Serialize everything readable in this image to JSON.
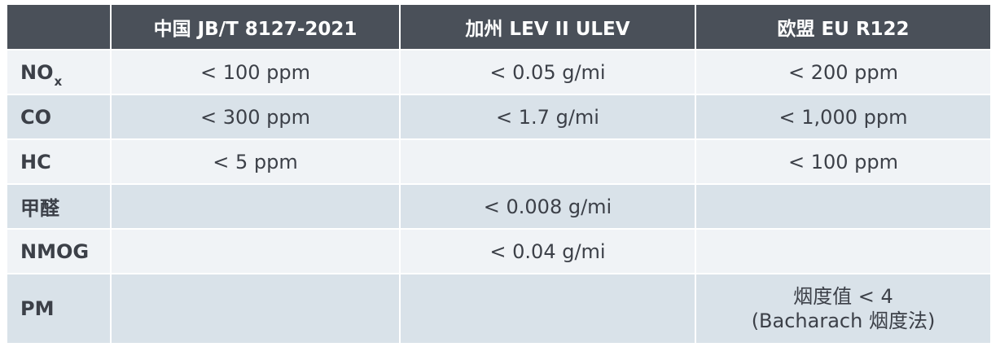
{
  "header": [
    "",
    "中国 JB/T 8127-2021",
    "加州 LEV II ULEV",
    "欧盟 EU R122"
  ],
  "rows": [
    {
      "label": "NO",
      "label_sub": "x",
      "values": [
        "< 100 ppm",
        "< 0.05 g/mi",
        "< 200 ppm"
      ]
    },
    {
      "label": "CO",
      "values": [
        "< 300 ppm",
        "< 1.7 g/mi",
        "< 1,000 ppm"
      ]
    },
    {
      "label": "HC",
      "values": [
        "< 5 ppm",
        "",
        "< 100 ppm"
      ]
    },
    {
      "label": "甲醛",
      "values": [
        "",
        "< 0.008 g/mi",
        ""
      ]
    },
    {
      "label": "NMOG",
      "values": [
        "",
        "< 0.04 g/mi",
        ""
      ]
    },
    {
      "label": "PM",
      "values": [
        "",
        "",
        ""
      ],
      "pm_line1": "烟度值 < 4",
      "pm_line2": "(Bacharach 烟度法)"
    }
  ],
  "colors": {
    "header_bg": "#4a5059",
    "row_light": "#f0f3f6",
    "row_dark": "#d9e2e9",
    "text": "#3c4048"
  }
}
